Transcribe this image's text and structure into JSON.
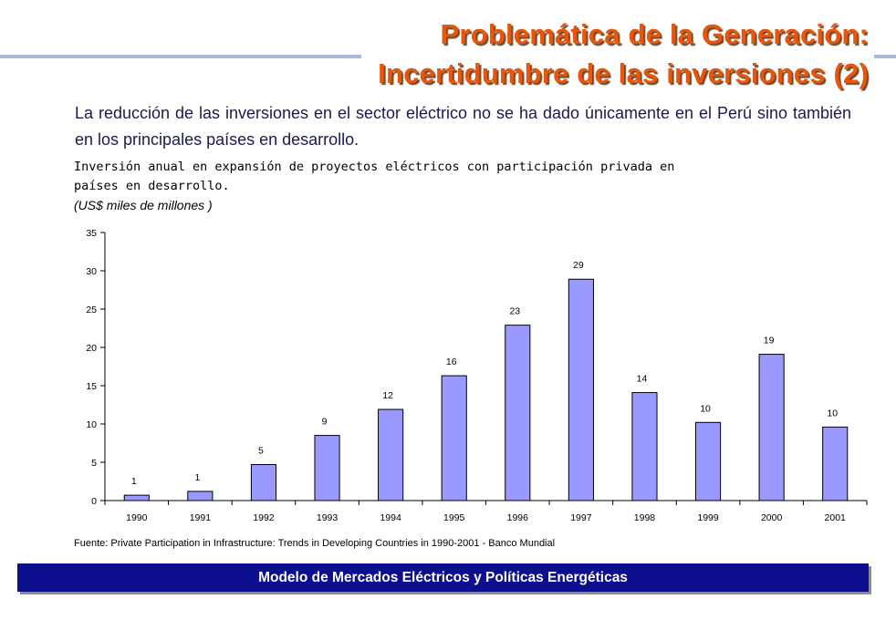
{
  "slide": {
    "title_line1": "Problemática de la Generación:",
    "title_line2": "Incertidumbre de las inversiones (2)",
    "intro_text": "La reducción de las inversiones en el sector eléctrico no se ha dado únicamente en el Perú sino también en los principales países en desarrollo.",
    "footer": "Modelo de Mercados Eléctricos y Políticas Energéticas",
    "colors": {
      "title": "#e8560c",
      "bar": "#9999ff",
      "footer_bg": "#0c0f8e"
    }
  },
  "chart_data": {
    "type": "bar",
    "title_line1": "Inversión anual en expansión de proyectos eléctricos con participación privada en",
    "title_line2": "países en desarrollo.",
    "unit_label": "(US$ miles de millones )",
    "source": "Fuente: Private Participation in Infrastructure: Trends in Developing Countries in 1990-2001 - Banco Mundial",
    "categories": [
      "1990",
      "1991",
      "1992",
      "1993",
      "1994",
      "1995",
      "1996",
      "1997",
      "1998",
      "1999",
      "2000",
      "2001"
    ],
    "values": [
      0.7,
      1.2,
      4.7,
      8.5,
      11.9,
      16.3,
      22.9,
      28.9,
      14.1,
      10.2,
      19.1,
      9.6
    ],
    "data_labels": [
      "1",
      "1",
      "5",
      "9",
      "12",
      "16",
      "23",
      "29",
      "14",
      "10",
      "19",
      "10"
    ],
    "ylim": [
      0,
      35
    ],
    "yticks": [
      0,
      5,
      10,
      15,
      20,
      25,
      30,
      35
    ],
    "grid": false,
    "legend": "none"
  }
}
